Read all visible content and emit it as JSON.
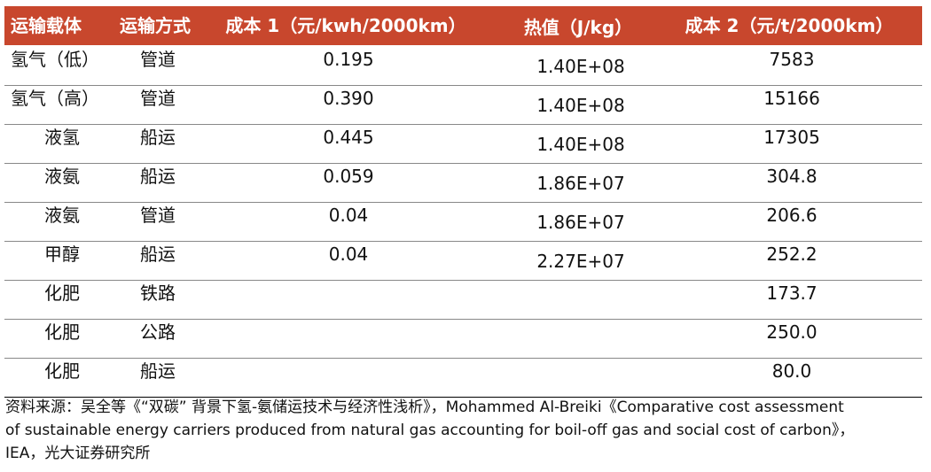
{
  "table": {
    "header": [
      "运输载体",
      "运输方式",
      "成本 1（元/kwh/2000km）",
      "热值（J/kg）",
      "成本 2（元/t/2000km）"
    ],
    "rows": [
      [
        "氢气（低）",
        "管道",
        "0.195",
        "1.40E+08",
        "7583"
      ],
      [
        "氢气（高）",
        "管道",
        "0.390",
        "1.40E+08",
        "15166"
      ],
      [
        "液氢",
        "船运",
        "0.445",
        "1.40E+08",
        "17305"
      ],
      [
        "液氨",
        "船运",
        "0.059",
        "1.86E+07",
        "304.8"
      ],
      [
        "液氨",
        "管道",
        "0.04",
        "1.86E+07",
        "206.6"
      ],
      [
        "甲醇",
        "船运",
        "0.04",
        "2.27E+07",
        "252.2"
      ],
      [
        "化肥",
        "铁路",
        null,
        null,
        "173.7"
      ],
      [
        "化肥",
        "公路",
        null,
        null,
        "250.0"
      ],
      [
        "化肥",
        "船运",
        null,
        null,
        "80.0"
      ]
    ]
  },
  "footnote": [
    "资料来源：吴全等《“双碳” 背景下氢-氨储运技术与经济性浅析》，Mohammed Al-Breiki《Comparative cost assessment",
    "of sustainable energy carriers produced from natural gas accounting for boil-off gas and social cost of carbon》，",
    "IEA，光大证券研究所"
  ]
}
